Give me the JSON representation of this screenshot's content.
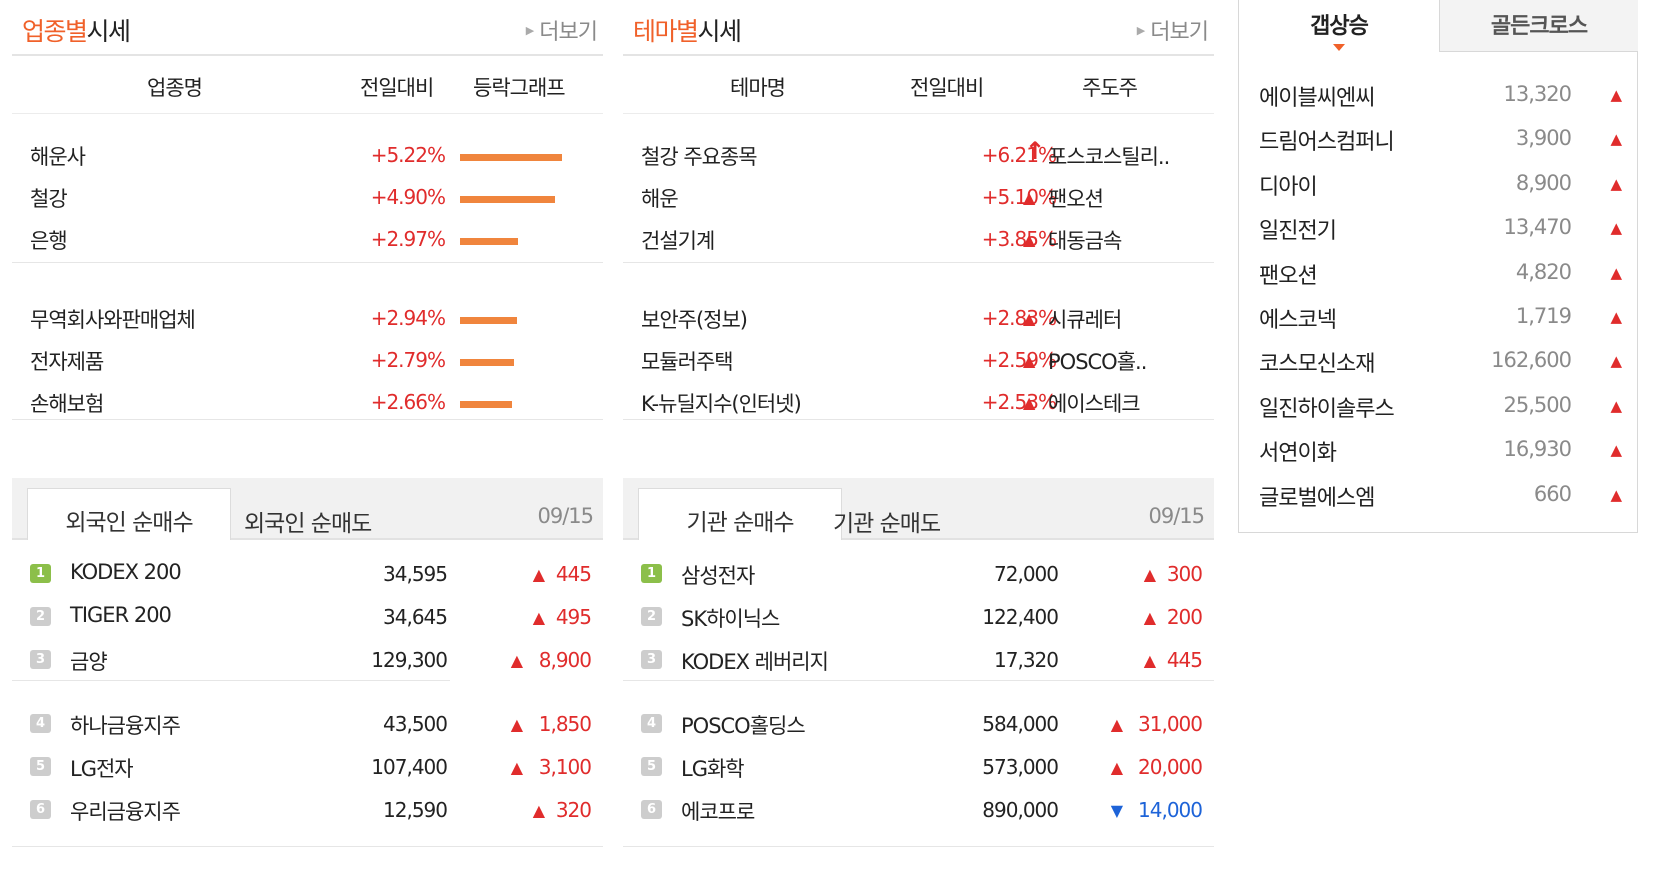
{
  "sector": {
    "title_highlight": "업종별",
    "title_rest": "시세",
    "more": "더보기",
    "headers": [
      "업종명",
      "전일대비",
      "등락그래프"
    ],
    "rows": [
      {
        "name": "해운사",
        "change": "+5.22%",
        "pct": 5.22
      },
      {
        "name": "철강",
        "change": "+4.90%",
        "pct": 4.9
      },
      {
        "name": "은행",
        "change": "+2.97%",
        "pct": 2.97
      },
      {
        "name": "무역회사와판매업체",
        "change": "+2.94%",
        "pct": 2.94
      },
      {
        "name": "전자제품",
        "change": "+2.79%",
        "pct": 2.79
      },
      {
        "name": "손해보험",
        "change": "+2.66%",
        "pct": 2.66
      }
    ]
  },
  "theme": {
    "title_highlight": "테마별",
    "title_rest": "시세",
    "more": "더보기",
    "headers": [
      "테마명",
      "전일대비",
      "주도주"
    ],
    "rows": [
      {
        "name": "철강 주요종목",
        "change": "+6.21%",
        "leader": "포스코스틸리..",
        "arrow": "up-arrow"
      },
      {
        "name": "해운",
        "change": "+5.10%",
        "leader": "팬오션",
        "arrow": "up-triangle"
      },
      {
        "name": "건설기계",
        "change": "+3.85%",
        "leader": "대동금속",
        "arrow": "up-triangle"
      },
      {
        "name": "보안주(정보)",
        "change": "+2.83%",
        "leader": "시큐레터",
        "arrow": "up-triangle"
      },
      {
        "name": "모듈러주택",
        "change": "+2.59%",
        "leader": "POSCO홀..",
        "arrow": "up-triangle"
      },
      {
        "name": "K-뉴딜지수(인터넷)",
        "change": "+2.53%",
        "leader": "에이스테크",
        "arrow": "up-triangle"
      }
    ]
  },
  "foreign": {
    "tab_active": "외국인 순매수",
    "tab_inactive": "외국인 순매도",
    "date": "09/15",
    "rows": [
      {
        "rank": "1",
        "name": "KODEX 200",
        "price": "34,595",
        "dir": "up",
        "amount": "445"
      },
      {
        "rank": "2",
        "name": "TIGER 200",
        "price": "34,645",
        "dir": "up",
        "amount": "495"
      },
      {
        "rank": "3",
        "name": "금양",
        "price": "129,300",
        "dir": "up",
        "amount": "8,900"
      },
      {
        "rank": "4",
        "name": "하나금융지주",
        "price": "43,500",
        "dir": "up",
        "amount": "1,850"
      },
      {
        "rank": "5",
        "name": "LG전자",
        "price": "107,400",
        "dir": "up",
        "amount": "3,100"
      },
      {
        "rank": "6",
        "name": "우리금융지주",
        "price": "12,590",
        "dir": "up",
        "amount": "320"
      }
    ]
  },
  "institution": {
    "tab_active": "기관 순매수",
    "tab_inactive": "기관 순매도",
    "date": "09/15",
    "rows": [
      {
        "rank": "1",
        "name": "삼성전자",
        "price": "72,000",
        "dir": "up",
        "amount": "300"
      },
      {
        "rank": "2",
        "name": "SK하이닉스",
        "price": "122,400",
        "dir": "up",
        "amount": "200"
      },
      {
        "rank": "3",
        "name": "KODEX 레버리지",
        "price": "17,320",
        "dir": "up",
        "amount": "445"
      },
      {
        "rank": "4",
        "name": "POSCO홀딩스",
        "price": "584,000",
        "dir": "up",
        "amount": "31,000"
      },
      {
        "rank": "5",
        "name": "LG화학",
        "price": "573,000",
        "dir": "up",
        "amount": "20,000"
      },
      {
        "rank": "6",
        "name": "에코프로",
        "price": "890,000",
        "dir": "down",
        "amount": "14,000"
      }
    ]
  },
  "ranking": {
    "tab_active": "갭상승",
    "tab_inactive": "골든크로스",
    "rows": [
      {
        "name": "에이블씨엔씨",
        "price": "13,320"
      },
      {
        "name": "드림어스컴퍼니",
        "price": "3,900"
      },
      {
        "name": "디아이",
        "price": "8,900"
      },
      {
        "name": "일진전기",
        "price": "13,470"
      },
      {
        "name": "팬오션",
        "price": "4,820"
      },
      {
        "name": "에스코넥",
        "price": "1,719"
      },
      {
        "name": "코스모신소재",
        "price": "162,600"
      },
      {
        "name": "일진하이솔루스",
        "price": "25,500"
      },
      {
        "name": "서연이화",
        "price": "16,930"
      },
      {
        "name": "글로벌에스엠",
        "price": "660"
      }
    ]
  },
  "colors": {
    "accent": "#f0612a",
    "up": "#e02c2c",
    "down": "#1d63d8",
    "bar": "#f0853d",
    "rank_first": "#8cbf4a"
  },
  "icons": {
    "more": "right-triangle-icon",
    "up": "up-triangle-icon",
    "down": "down-triangle-icon",
    "strong_up": "up-arrow-icon"
  }
}
